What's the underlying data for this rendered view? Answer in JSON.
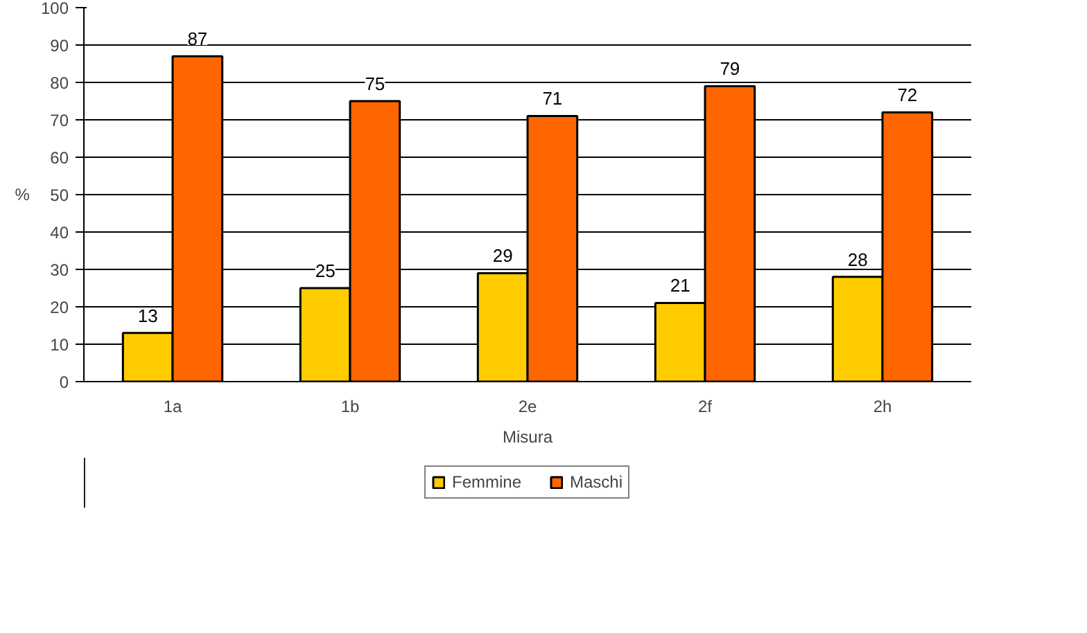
{
  "chart_data": {
    "type": "bar",
    "xlabel": "Misura",
    "ylabel": "%",
    "categories": [
      "1a",
      "1b",
      "2e",
      "2f",
      "2h"
    ],
    "series": [
      {
        "name": "Femmine",
        "color": "#ffcc00",
        "values": [
          13,
          25,
          29,
          21,
          28
        ]
      },
      {
        "name": "Maschi",
        "color": "#ff6600",
        "values": [
          87,
          75,
          71,
          79,
          72
        ]
      }
    ],
    "ylim": [
      0,
      100
    ],
    "yticks": [
      0,
      10,
      20,
      30,
      40,
      50,
      60,
      70,
      80,
      90,
      100
    ],
    "grid": "y",
    "legend": "bottom",
    "data_labels": true
  }
}
